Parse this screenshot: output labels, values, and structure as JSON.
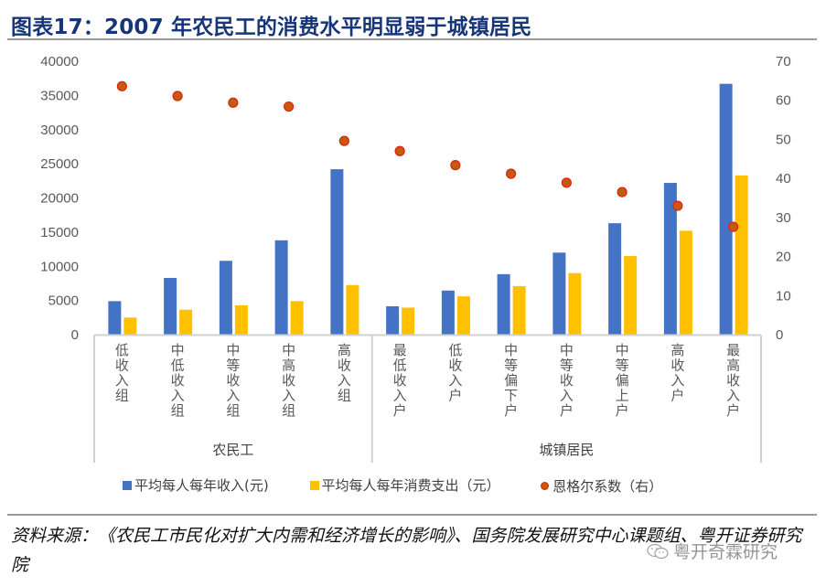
{
  "title": "图表17：2007 年农民工的消费水平明显弱于城镇居民",
  "chart_data": {
    "type": "bar",
    "title": "图表17：2007 年农民工的消费水平明显弱于城镇居民",
    "categories": [
      "低收入组",
      "中低收入组",
      "中等收入组",
      "中高收入组",
      "高收入组",
      "最低收入户",
      "低收入户",
      "中等偏下户",
      "中等收入户",
      "中等偏上户",
      "高收入户",
      "最高收入户"
    ],
    "groups": [
      {
        "name": "农民工",
        "count": 5
      },
      {
        "name": "城镇居民",
        "count": 7
      }
    ],
    "series": [
      {
        "name": "平均每人每年收入(元)",
        "type": "bar",
        "axis": "left",
        "color": "#4472C4",
        "values": [
          4900,
          8300,
          10800,
          13800,
          24200,
          4150,
          6450,
          8850,
          12000,
          16300,
          22200,
          36700
        ]
      },
      {
        "name": "平均每人每年消费支出（元）",
        "type": "bar",
        "axis": "left",
        "color": "#FFC000",
        "values": [
          2500,
          3650,
          4300,
          4900,
          7250,
          3950,
          5600,
          7100,
          9000,
          11500,
          15200,
          23300
        ]
      },
      {
        "name": "恩格尔系数（右）",
        "type": "scatter",
        "axis": "right",
        "color": "#C55A11",
        "stroke": "#E3200F",
        "values": [
          63.6,
          61.1,
          59.4,
          58.4,
          49.6,
          47.0,
          43.4,
          41.2,
          38.9,
          36.5,
          33.0,
          27.6
        ]
      }
    ],
    "left_axis": {
      "min": 0,
      "max": 40000,
      "ticks": [
        "0",
        "5000",
        "10000",
        "15000",
        "20000",
        "25000",
        "30000",
        "35000",
        "40000"
      ]
    },
    "right_axis": {
      "min": 0,
      "max": 70,
      "ticks": [
        "0",
        "10",
        "20",
        "30",
        "40",
        "50",
        "60",
        "70"
      ]
    },
    "xlabel": "",
    "ylabel": "",
    "grid": false,
    "legend_position": "bottom"
  },
  "legend": [
    {
      "label": "平均每人每年收入(元)",
      "color": "#4472C4",
      "shape": "square"
    },
    {
      "label": "平均每人每年消费支出（元）",
      "color": "#FFC000",
      "shape": "square"
    },
    {
      "label": "恩格尔系数（右）",
      "color": "#C55A11",
      "shape": "circle"
    }
  ],
  "source": "资料来源：《农民工市民化对扩大内需和经济增长的影响》、国务院发展研究中心课题组、粤开证券研究院",
  "watermark": "粤开奇霖研究"
}
